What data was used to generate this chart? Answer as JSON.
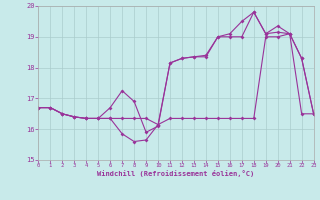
{
  "xlabel": "Windchill (Refroidissement éolien,°C)",
  "xlim": [
    0,
    23
  ],
  "ylim": [
    15,
    20
  ],
  "yticks": [
    15,
    16,
    17,
    18,
    19,
    20
  ],
  "xticks": [
    0,
    1,
    2,
    3,
    4,
    5,
    6,
    7,
    8,
    9,
    10,
    11,
    12,
    13,
    14,
    15,
    16,
    17,
    18,
    19,
    20,
    21,
    22,
    23
  ],
  "background_color": "#c8eaea",
  "grid_color": "#aacccc",
  "line_color": "#993399",
  "series1_y": [
    16.7,
    16.7,
    16.5,
    16.4,
    16.35,
    16.35,
    16.35,
    15.85,
    15.6,
    15.65,
    16.15,
    18.15,
    18.3,
    18.35,
    18.35,
    19.0,
    19.0,
    19.0,
    19.8,
    19.1,
    19.15,
    19.1,
    18.3,
    16.5
  ],
  "series2_y": [
    16.7,
    16.7,
    16.5,
    16.4,
    16.35,
    16.35,
    16.7,
    17.25,
    16.9,
    15.9,
    16.1,
    18.15,
    18.3,
    18.35,
    18.4,
    19.0,
    19.1,
    19.5,
    19.8,
    19.1,
    19.35,
    19.1,
    18.3,
    16.5
  ],
  "series3_y": [
    16.7,
    16.7,
    16.5,
    16.4,
    16.35,
    16.35,
    16.35,
    16.35,
    16.35,
    16.35,
    16.15,
    16.35,
    16.35,
    16.35,
    16.35,
    16.35,
    16.35,
    16.35,
    16.35,
    19.0,
    19.0,
    19.1,
    16.5,
    16.5
  ]
}
